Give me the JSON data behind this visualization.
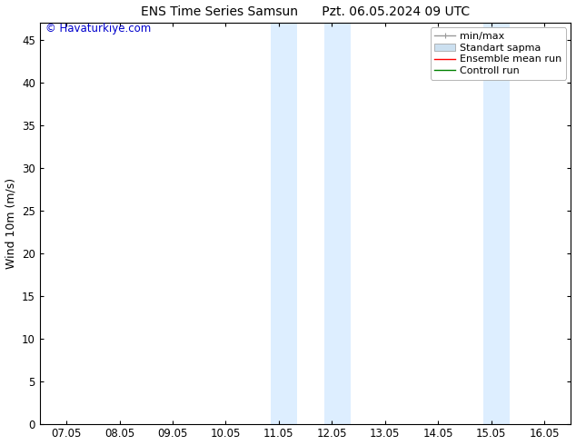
{
  "title_left": "ENS Time Series Samsun",
  "title_right": "Pzt. 06.05.2024 09 UTC",
  "ylabel": "Wind 10m (m/s)",
  "ylim": [
    0,
    47
  ],
  "yticks": [
    0,
    5,
    10,
    15,
    20,
    25,
    30,
    35,
    40,
    45
  ],
  "xtick_labels": [
    "07.05",
    "08.05",
    "09.05",
    "10.05",
    "11.05",
    "12.05",
    "13.05",
    "14.05",
    "15.05",
    "16.05"
  ],
  "xtick_positions": [
    0,
    1,
    2,
    3,
    4,
    5,
    6,
    7,
    8,
    9
  ],
  "xlim": [
    -0.5,
    9.5
  ],
  "shaded_bands": [
    {
      "x_start": 3.85,
      "x_end": 4.35
    },
    {
      "x_start": 4.85,
      "x_end": 5.35
    },
    {
      "x_start": 7.85,
      "x_end": 8.35
    }
  ],
  "shaded_color": "#ddeeff",
  "watermark_text": "© Havaturkiye.com",
  "watermark_color": "#0000cc",
  "legend_items": [
    {
      "label": "min/max",
      "color": "#999999",
      "linestyle": "-",
      "linewidth": 1.0
    },
    {
      "label": "Standart sapma",
      "color": "#cce0f0",
      "linestyle": "-",
      "linewidth": 6
    },
    {
      "label": "Ensemble mean run",
      "color": "red",
      "linestyle": "-",
      "linewidth": 1.0
    },
    {
      "label": "Controll run",
      "color": "green",
      "linestyle": "-",
      "linewidth": 1.0
    }
  ],
  "bg_color": "#ffffff",
  "spine_color": "#000000",
  "tick_color": "#000000",
  "title_fontsize": 10,
  "label_fontsize": 9,
  "tick_fontsize": 8.5,
  "legend_fontsize": 8
}
